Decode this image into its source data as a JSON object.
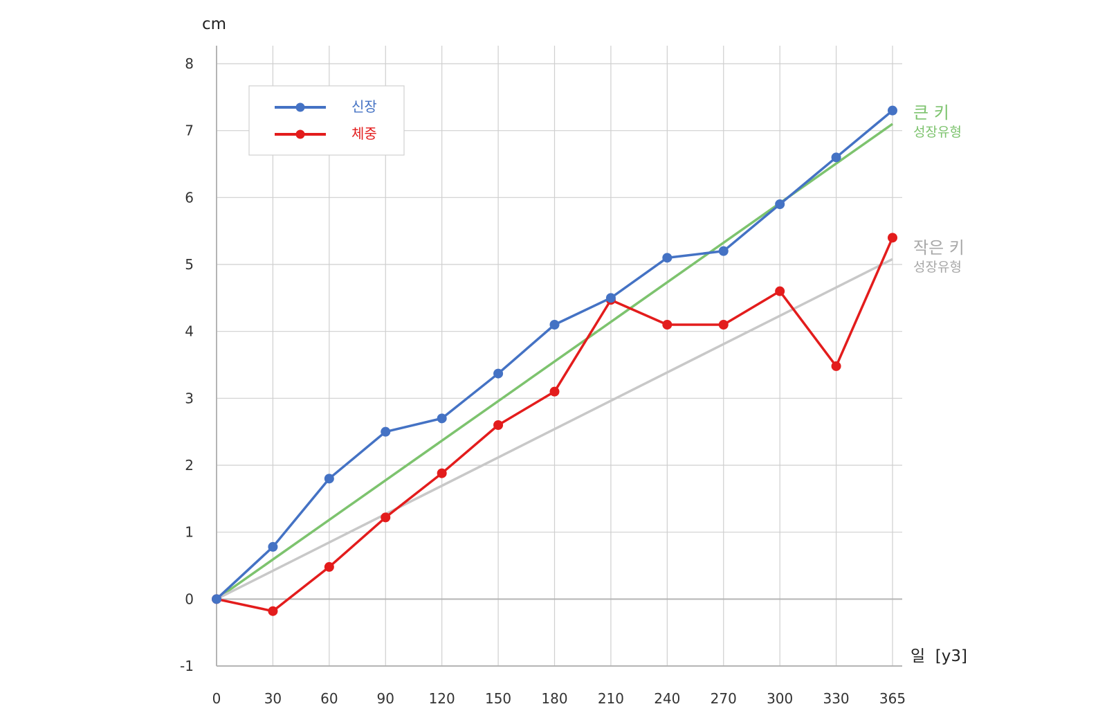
{
  "chart_data": {
    "type": "line",
    "ylabel": "cm",
    "xlabel": "일  [y3]",
    "x": [
      0,
      30,
      60,
      90,
      120,
      150,
      180,
      210,
      240,
      270,
      300,
      330,
      365
    ],
    "xlim": [
      0,
      365
    ],
    "ylim": [
      -1,
      8
    ],
    "yticks": [
      -1,
      0,
      1,
      2,
      3,
      4,
      5,
      6,
      7,
      8
    ],
    "grid": true,
    "legend_position": "top-left",
    "series": [
      {
        "name": "신장",
        "color": "#4472c4",
        "values": [
          0,
          0.78,
          1.8,
          2.5,
          2.7,
          3.37,
          4.1,
          4.5,
          5.1,
          5.2,
          5.9,
          6.6,
          7.3
        ]
      },
      {
        "name": "체중",
        "color": "#e31c1c",
        "values": [
          0,
          -0.18,
          0.48,
          1.22,
          1.88,
          2.6,
          3.1,
          4.47,
          4.1,
          4.1,
          4.6,
          3.48,
          5.4
        ]
      }
    ],
    "reference_lines": [
      {
        "title": "큰 키",
        "subtitle": "성장유형",
        "color": "#7dc36e",
        "from": [
          0,
          0
        ],
        "to": [
          365,
          7.1
        ]
      },
      {
        "title": "작은 키",
        "subtitle": "성장유형",
        "color": "#c8c8c8",
        "from": [
          0,
          0
        ],
        "to": [
          365,
          5.08
        ]
      }
    ]
  }
}
